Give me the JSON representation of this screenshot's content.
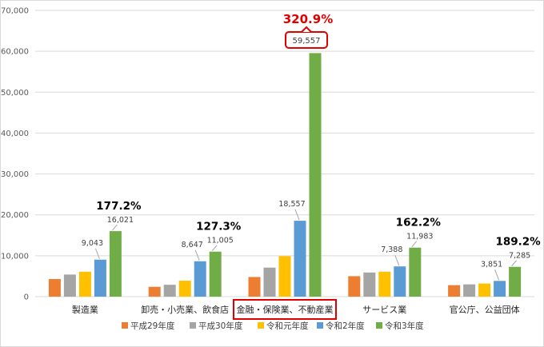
{
  "chart_data": {
    "type": "bar",
    "title": "",
    "xlabel": "",
    "ylabel": "",
    "ylim": [
      0,
      70000
    ],
    "y_ticks": [
      "0",
      "10,000",
      "20,000",
      "30,000",
      "40,000",
      "50,000",
      "60,000",
      "70,000"
    ],
    "grid": true,
    "legend_position": "bottom",
    "categories": [
      "製造業",
      "卸売・小売業、飲食店",
      "金融・保険業、不動産業",
      "サービス業",
      "官公庁、公益団体"
    ],
    "highlighted_category": "金融・保険業、不動産業",
    "series": [
      {
        "name": "平成29年度",
        "color": "#ED7D31",
        "values": [
          4300,
          2400,
          4800,
          5000,
          2800
        ]
      },
      {
        "name": "平成30年度",
        "color": "#A5A5A5",
        "values": [
          5400,
          2900,
          7100,
          5900,
          3000
        ]
      },
      {
        "name": "令和元年度",
        "color": "#FFC000",
        "values": [
          6100,
          3900,
          9900,
          6100,
          3200
        ]
      },
      {
        "name": "令和2年度",
        "color": "#5B9BD5",
        "values": [
          9043,
          8647,
          18557,
          7388,
          3851
        ]
      },
      {
        "name": "令和3年度",
        "color": "#70AD47",
        "values": [
          16021,
          11005,
          59557,
          11983,
          7285
        ]
      }
    ],
    "data_labels": {
      "令和2年度": [
        "9,043",
        "8,647",
        "18,557",
        "7,388",
        "3,851"
      ],
      "令和3年度": [
        "16,021",
        "11,005",
        "59,557",
        "11,983",
        "7,285"
      ]
    },
    "growth_labels": [
      "177.2%",
      "127.3%",
      "320.9%",
      "162.2%",
      "189.2%"
    ],
    "colors": {
      "highlight": "#E00000",
      "grid": "#D9D9D9",
      "axis_text": "#595959"
    }
  }
}
